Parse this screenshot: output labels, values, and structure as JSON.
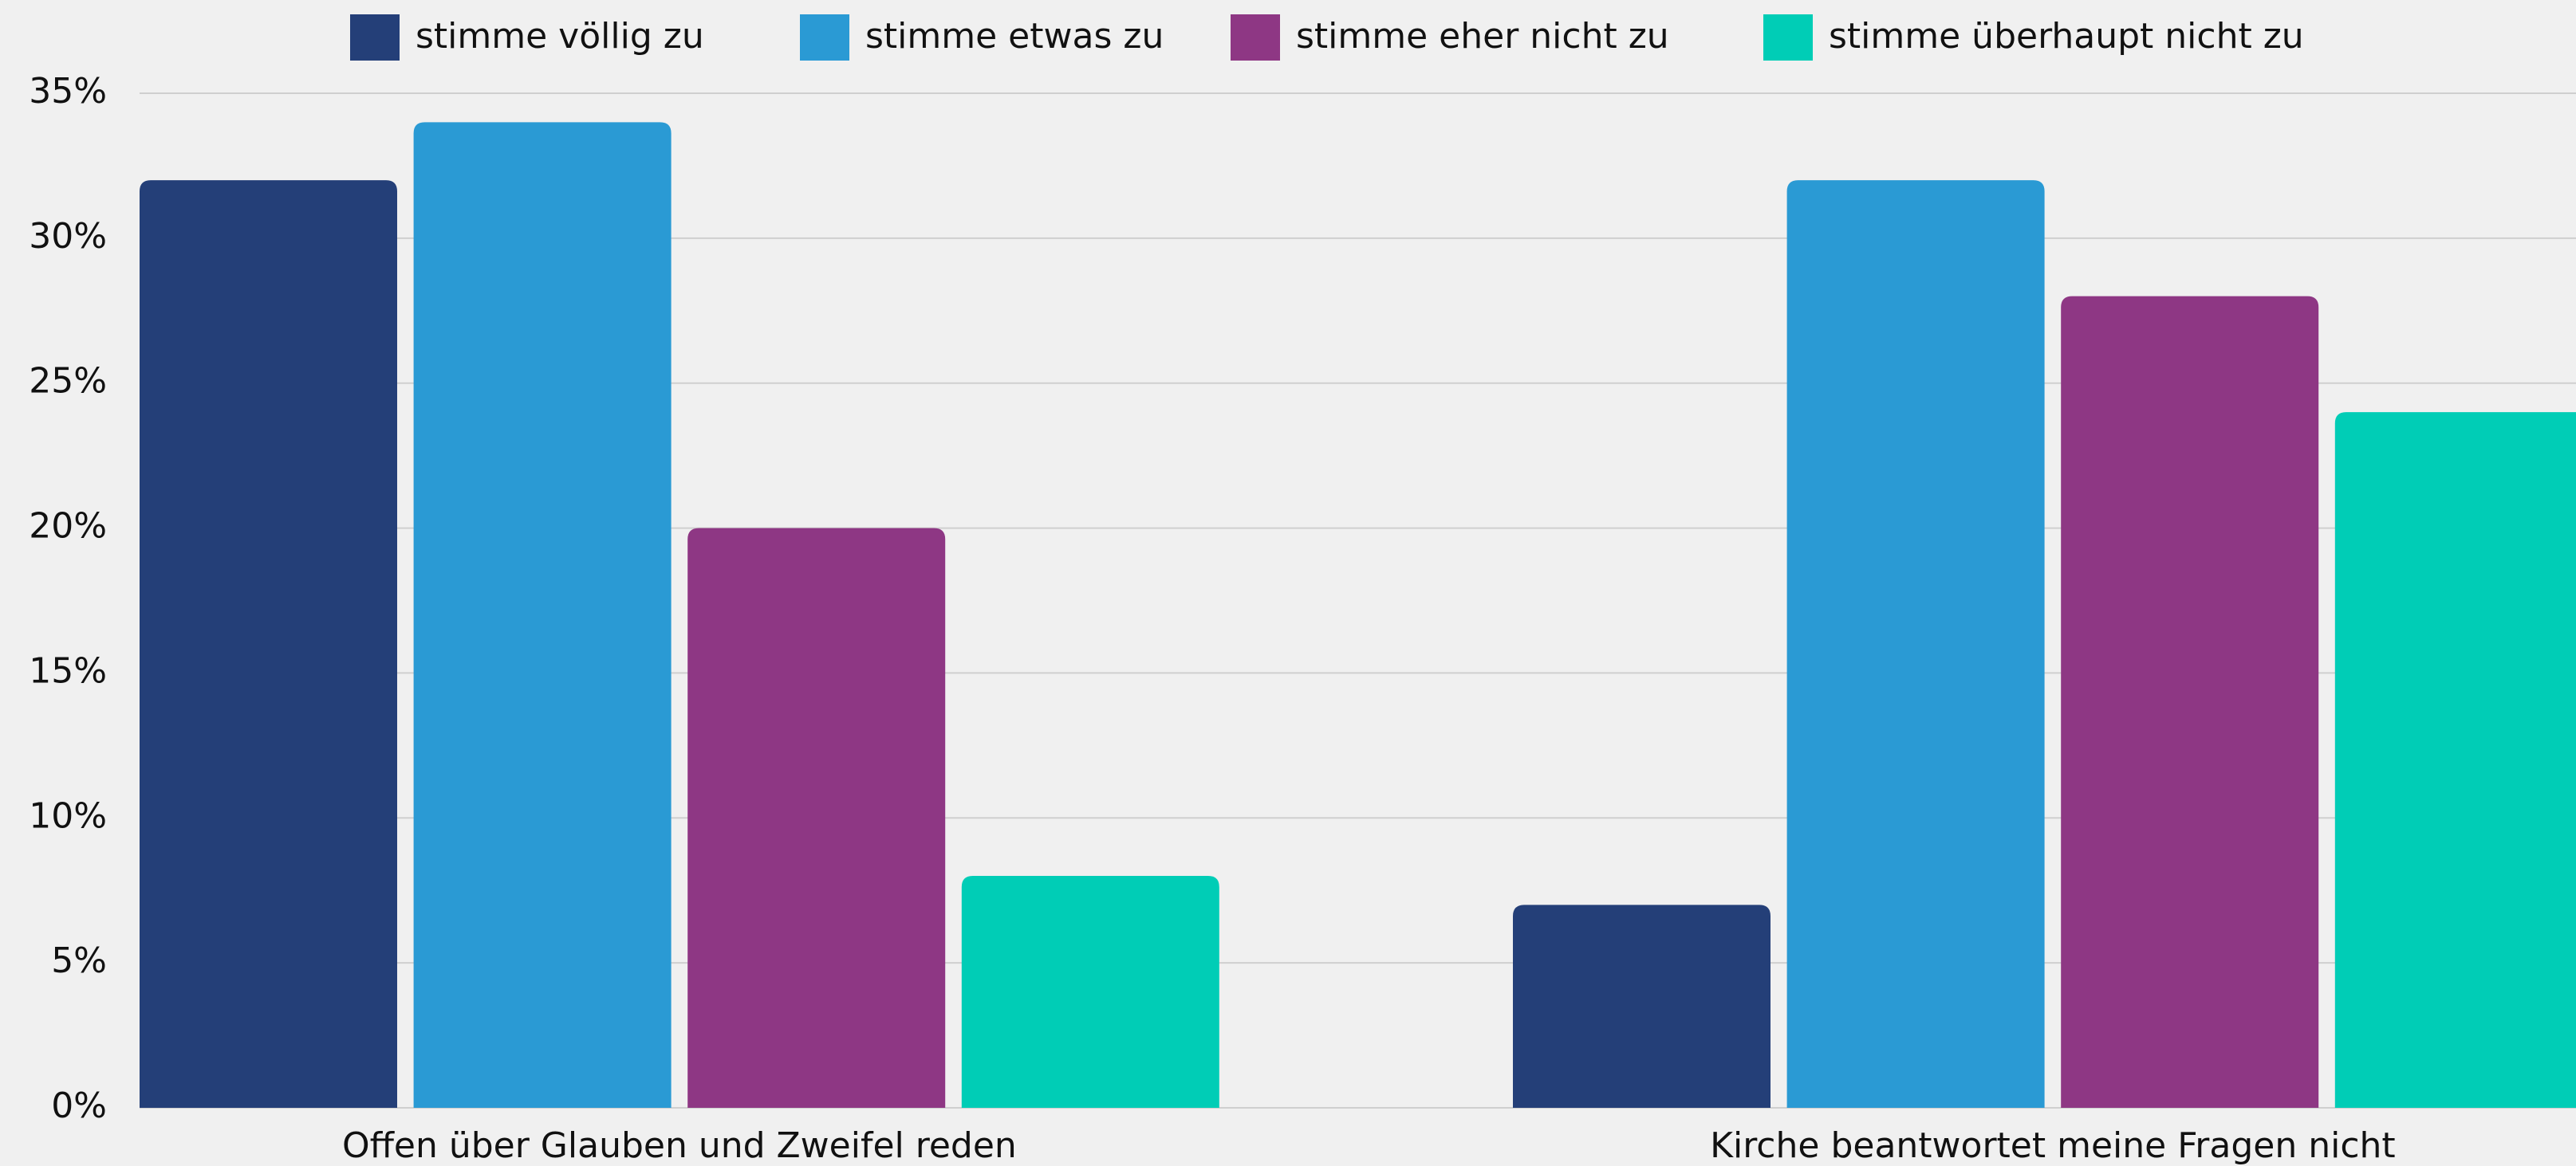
{
  "chart_data": {
    "type": "bar",
    "categories": [
      "Offen über Glauben und Zweifel reden",
      "Kirche beantwortet meine Fragen nicht"
    ],
    "series": [
      {
        "name": "stimme völlig zu",
        "color": "#243f78",
        "values": [
          32,
          7
        ]
      },
      {
        "name": "stimme etwas zu",
        "color": "#2a9ad4",
        "values": [
          34,
          32
        ]
      },
      {
        "name": "stimme eher nicht zu",
        "color": "#8e3784",
        "values": [
          20,
          28
        ]
      },
      {
        "name": "stimme überhaupt nicht zu",
        "color": "#00cdb6",
        "values": [
          8,
          24
        ]
      }
    ],
    "ylim": [
      0,
      35
    ],
    "yticks": [
      {
        "value": 0,
        "label": "0%"
      },
      {
        "value": 5,
        "label": "5%"
      },
      {
        "value": 10,
        "label": "10%"
      },
      {
        "value": 15,
        "label": "15%"
      },
      {
        "value": 20,
        "label": "20%"
      },
      {
        "value": 25,
        "label": "25%"
      },
      {
        "value": 30,
        "label": "30%"
      },
      {
        "value": 35,
        "label": "35%"
      }
    ],
    "grid": true,
    "legend": "top"
  }
}
